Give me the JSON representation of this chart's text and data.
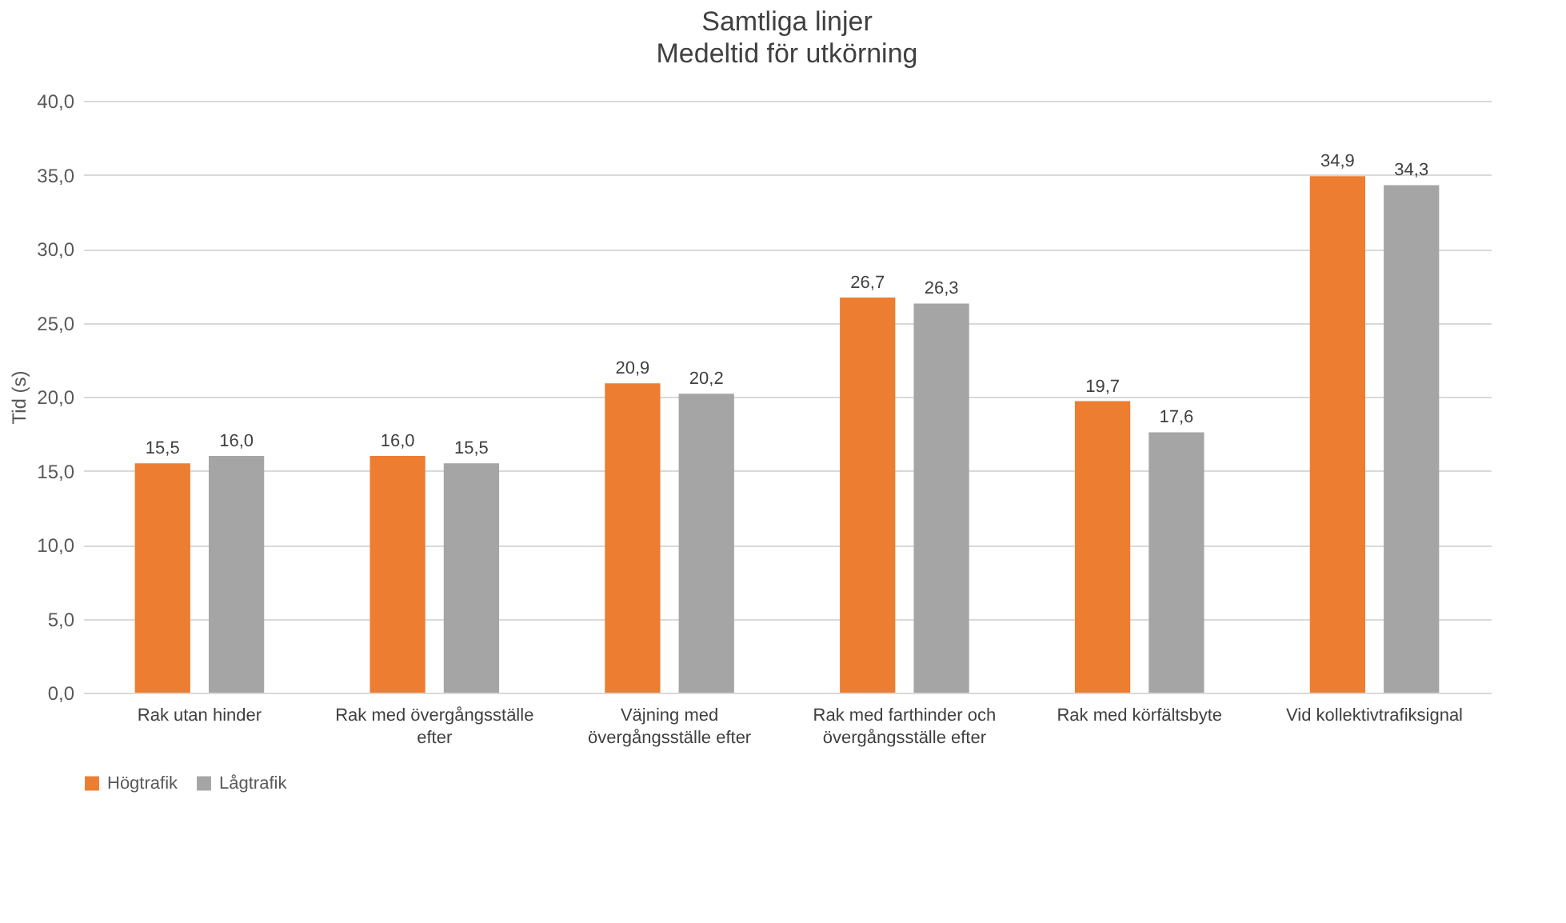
{
  "chart_data": {
    "type": "bar",
    "title": "Samtliga linjer",
    "subtitle": "Medeltid för utkörning",
    "ylabel": "Tid (s)",
    "categories": [
      "Rak utan hinder",
      "Rak med övergångsställe efter",
      "Väjning med övergångsställe efter",
      "Rak med farthinder och övergångsställe efter",
      "Rak med körfältsbyte",
      "Vid kollektivtrafiksignal"
    ],
    "series": [
      {
        "name": "Högtrafik",
        "color": "#ed7d31",
        "values": [
          15.5,
          16.0,
          20.9,
          26.7,
          19.7,
          34.9
        ],
        "value_labels": [
          "15,5",
          "16,0",
          "20,9",
          "26,7",
          "19,7",
          "34,9"
        ]
      },
      {
        "name": "Lågtrafik",
        "color": "#a5a5a5",
        "values": [
          16.0,
          15.5,
          20.2,
          26.3,
          17.6,
          34.3
        ],
        "value_labels": [
          "16,0",
          "15,5",
          "20,2",
          "26,3",
          "17,6",
          "34,3"
        ]
      }
    ],
    "ylim": [
      0,
      40
    ],
    "yticks": [
      {
        "value": 0,
        "label": "0,0"
      },
      {
        "value": 5,
        "label": "5,0"
      },
      {
        "value": 10,
        "label": "10,0"
      },
      {
        "value": 15,
        "label": "15,0"
      },
      {
        "value": 20,
        "label": "20,0"
      },
      {
        "value": 25,
        "label": "25,0"
      },
      {
        "value": 30,
        "label": "30,0"
      },
      {
        "value": 35,
        "label": "35,0"
      },
      {
        "value": 40,
        "label": "40,0"
      }
    ],
    "grid": "y",
    "legend": "bottom"
  }
}
